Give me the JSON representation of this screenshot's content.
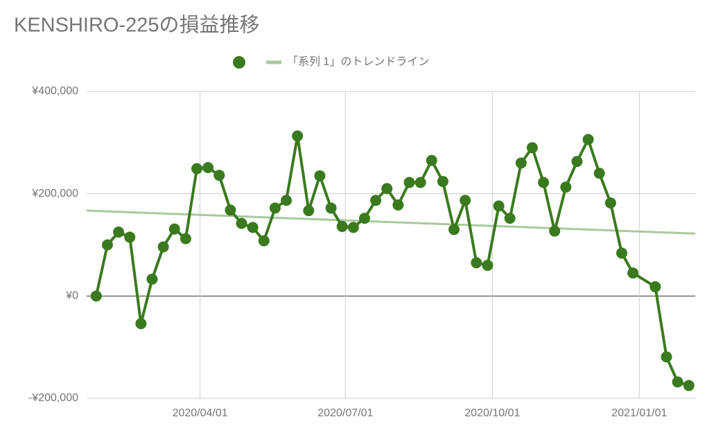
{
  "chart_data": {
    "type": "line",
    "title": "KENSHIRO-225の損益推移",
    "x": [
      "2020/01/27",
      "2020/02/03",
      "2020/02/10",
      "2020/02/17",
      "2020/02/24",
      "2020/03/02",
      "2020/03/09",
      "2020/03/16",
      "2020/03/23",
      "2020/03/30",
      "2020/04/06",
      "2020/04/13",
      "2020/04/20",
      "2020/04/27",
      "2020/05/04",
      "2020/05/11",
      "2020/05/18",
      "2020/05/25",
      "2020/06/01",
      "2020/06/08",
      "2020/06/15",
      "2020/06/22",
      "2020/06/29",
      "2020/07/06",
      "2020/07/13",
      "2020/07/20",
      "2020/07/27",
      "2020/08/03",
      "2020/08/10",
      "2020/08/17",
      "2020/08/24",
      "2020/08/31",
      "2020/09/07",
      "2020/09/14",
      "2020/09/21",
      "2020/09/28",
      "2020/10/05",
      "2020/10/12",
      "2020/10/19",
      "2020/10/26",
      "2020/11/02",
      "2020/11/09",
      "2020/11/16",
      "2020/11/23",
      "2020/11/30",
      "2020/12/07",
      "2020/12/14",
      "2020/12/21",
      "2020/12/28",
      "2021/01/11",
      "2021/01/18",
      "2021/01/25",
      "2021/02/01"
    ],
    "series": [
      {
        "color": "#3a7a1e",
        "values": [
          0,
          100000,
          125000,
          115000,
          -54000,
          33000,
          96000,
          131000,
          112000,
          249000,
          251000,
          236000,
          168000,
          142000,
          134000,
          108000,
          172000,
          187000,
          313000,
          167000,
          235000,
          172000,
          136000,
          134000,
          152000,
          187000,
          210000,
          178000,
          222000,
          222000,
          265000,
          224000,
          130000,
          187000,
          65000,
          60000,
          176000,
          152000,
          260000,
          290000,
          222000,
          127000,
          213000,
          263000,
          306000,
          240000,
          182000,
          84000,
          45000,
          18000,
          -119000,
          -168000,
          -175000
        ]
      }
    ],
    "trendline": {
      "name": "「系列 1」のトレンドライン",
      "color": "#a9c99b",
      "x": [
        "2020/01/21",
        "2021/02/05"
      ],
      "values": [
        167000,
        122000
      ]
    },
    "xlim": [
      "2020/01/21",
      "2021/02/05"
    ],
    "xticks": [
      "2020/04/01",
      "2020/07/01",
      "2020/10/01",
      "2021/01/01"
    ],
    "ylim": [
      -200000,
      400000
    ],
    "yticks": [
      {
        "value": -200000,
        "label": "-¥200,000"
      },
      {
        "value": 0,
        "label": "¥0"
      },
      {
        "value": 200000,
        "label": "¥200,000"
      },
      {
        "value": 400000,
        "label": "¥400,000"
      }
    ],
    "grid": true,
    "legend": "top"
  }
}
